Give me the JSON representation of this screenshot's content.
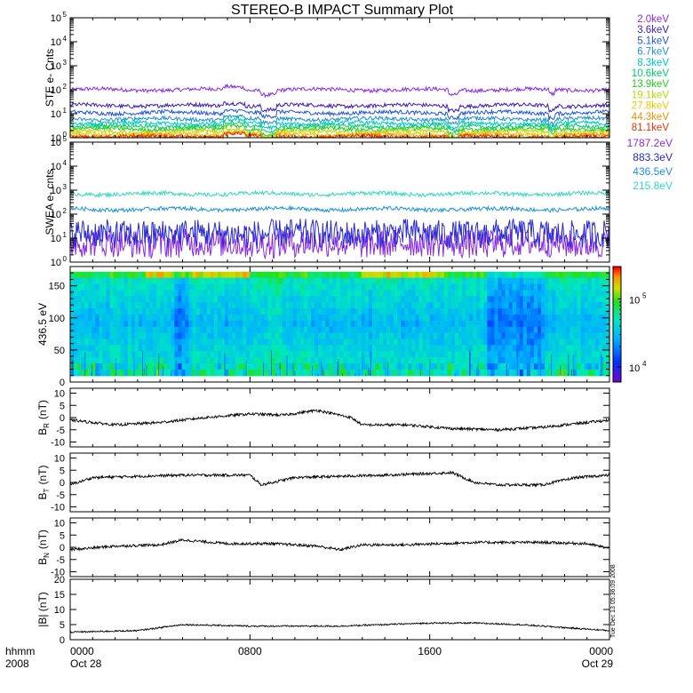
{
  "title": "STEREO-B IMPACT Summary Plot",
  "timestamp_label": "Tue Dec 13 05:36:09 2008",
  "chart_data": [
    {
      "type": "line",
      "panel": "ste",
      "ylabel": "STE e- Cnts",
      "yscale": "log",
      "ylim": [
        1,
        100000
      ],
      "ytick_bases": [
        "10",
        "10",
        "10",
        "10",
        "10",
        "10"
      ],
      "ytick_exps": [
        "0",
        "1",
        "2",
        "3",
        "4",
        "5"
      ],
      "series": [
        {
          "name": "2.0keV",
          "color": "#8a2be2",
          "level": 100
        },
        {
          "name": "3.6keV",
          "color": "#3a1fb5",
          "level": 22
        },
        {
          "name": "5.1keV",
          "color": "#1f55d8",
          "level": 11
        },
        {
          "name": "6.7keV",
          "color": "#1e90d0",
          "level": 6
        },
        {
          "name": "8.3keV",
          "color": "#00c8c8",
          "level": 4
        },
        {
          "name": "10.6keV",
          "color": "#00c86e",
          "level": 3
        },
        {
          "name": "13.9keV",
          "color": "#22cc22",
          "level": 2.3
        },
        {
          "name": "19.1keV",
          "color": "#b8d800",
          "level": 1.8
        },
        {
          "name": "27.8keV",
          "color": "#e8c800",
          "level": 1.4
        },
        {
          "name": "44.3keV",
          "color": "#f09000",
          "level": 1.2
        },
        {
          "name": "81.1keV",
          "color": "#e83000",
          "level": 1.1
        }
      ]
    },
    {
      "type": "line",
      "panel": "swea",
      "ylabel": "SWEA e- cnts",
      "yscale": "log",
      "ylim": [
        1,
        100000
      ],
      "ytick_bases": [
        "10",
        "10",
        "10",
        "10",
        "10",
        "10"
      ],
      "ytick_exps": [
        "0",
        "1",
        "2",
        "3",
        "4",
        "5"
      ],
      "series": [
        {
          "name": "1787.2eV",
          "color": "#8a2be2",
          "level": 6
        },
        {
          "name": "883.3eV",
          "color": "#2a2ad0",
          "level": 15
        },
        {
          "name": "436.5eV",
          "color": "#1e90e0",
          "level": 160
        },
        {
          "name": "215.8eV",
          "color": "#30d8c0",
          "level": 700
        }
      ]
    },
    {
      "type": "heatmap",
      "panel": "pitch",
      "ylabel": "436.5 eV",
      "ylim": [
        0,
        180
      ],
      "yticks": [
        "0",
        "50",
        "100",
        "150"
      ],
      "colorbar_ticks_base": [
        "10",
        "10"
      ],
      "colorbar_ticks_exp": [
        "4",
        "5"
      ],
      "colorbar_range": [
        6000,
        300000
      ]
    },
    {
      "type": "line",
      "panel": "br",
      "ylabel_main": "B",
      "ylabel_sub": "R",
      "ylabel_unit": "(nT)",
      "ylim": [
        -12,
        12
      ],
      "yticks": [
        "-10",
        "-5",
        "0",
        "5",
        "10"
      ],
      "profile": {
        "x": [
          0,
          2,
          4,
          6,
          8,
          9.5,
          11,
          12.5,
          13,
          15,
          17,
          19,
          21,
          23,
          24
        ],
        "y": [
          -1,
          -3,
          -2,
          0,
          1.5,
          1,
          3,
          0,
          -3,
          -3,
          -4.5,
          -5,
          -4,
          -2,
          -1
        ]
      }
    },
    {
      "type": "line",
      "panel": "bt",
      "ylabel_main": "B",
      "ylabel_sub": "T",
      "ylabel_unit": "(nT)",
      "ylim": [
        -12,
        12
      ],
      "yticks": [
        "-10",
        "-5",
        "0",
        "5",
        "10"
      ],
      "profile": {
        "x": [
          0,
          1,
          3,
          5,
          8,
          8.5,
          10,
          12,
          14,
          17,
          18,
          19,
          21,
          22.5,
          24
        ],
        "y": [
          -1,
          2,
          2.5,
          3,
          3,
          -1,
          2,
          2.5,
          3,
          4,
          0,
          -1,
          -1,
          2,
          3
        ]
      }
    },
    {
      "type": "line",
      "panel": "bn",
      "ylabel_main": "B",
      "ylabel_sub": "N",
      "ylabel_unit": "(nT)",
      "ylim": [
        -12,
        12
      ],
      "yticks": [
        "-10",
        "-5",
        "0",
        "5",
        "10"
      ],
      "profile": {
        "x": [
          0,
          2,
          4,
          5,
          7,
          9,
          11,
          12,
          13,
          15,
          18,
          21,
          23,
          24
        ],
        "y": [
          -1,
          0.5,
          1,
          3,
          1.5,
          1.5,
          0.5,
          -1,
          1,
          1,
          2,
          2,
          1.5,
          -0.5
        ]
      }
    },
    {
      "type": "line",
      "panel": "btot",
      "ylabel": "|B| (nT)",
      "ylim": [
        0,
        20
      ],
      "yticks": [
        "0",
        "5",
        "10",
        "15",
        "20"
      ],
      "profile": {
        "x": [
          0,
          3,
          5,
          8,
          10,
          12,
          14,
          16,
          18,
          20,
          22,
          24
        ],
        "y": [
          2.5,
          3,
          5,
          4.5,
          4.5,
          4.5,
          5,
          5.5,
          5.5,
          5,
          4,
          3
        ]
      }
    }
  ],
  "x_axis": {
    "unit_label": "hhmm",
    "year_label": "2008",
    "ticks": [
      {
        "hour": 0,
        "time": "0000",
        "date": "Oct 28"
      },
      {
        "hour": 8,
        "time": "0800",
        "date": ""
      },
      {
        "hour": 16,
        "time": "1600",
        "date": ""
      },
      {
        "hour": 24,
        "time": "0000",
        "date": "Oct 29"
      }
    ],
    "range_hours": [
      0,
      24
    ]
  }
}
